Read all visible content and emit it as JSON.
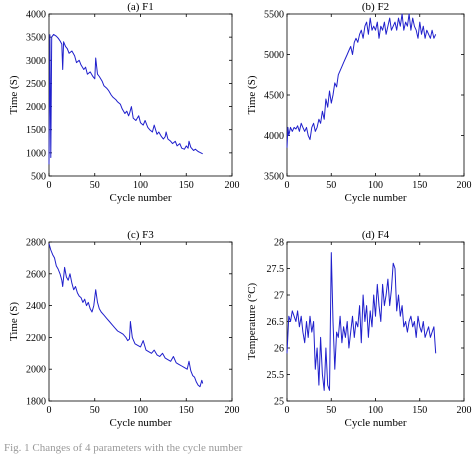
{
  "caption": "Fig. 1  Changes of 4 parameters with the cycle number",
  "chart_data": [
    {
      "type": "line",
      "title": "(a) F1",
      "xlabel": "Cycle number",
      "ylabel": "Time (S)",
      "xlim": [
        0,
        200
      ],
      "ylim": [
        500,
        4000
      ],
      "xticks": [
        0,
        50,
        100,
        150,
        200
      ],
      "yticks": [
        500,
        1000,
        1500,
        2000,
        2500,
        3000,
        3500,
        4000
      ],
      "grid": false,
      "color": "#1f1fcc",
      "series": [
        {
          "x": [
            0,
            1,
            2,
            3,
            5,
            8,
            10,
            12,
            14,
            15,
            16,
            18,
            20,
            22,
            25,
            28,
            30,
            33,
            35,
            38,
            40,
            42,
            45,
            48,
            50,
            51,
            53,
            55,
            58,
            60,
            63,
            65,
            68,
            70,
            73,
            75,
            78,
            80,
            83,
            85,
            87,
            88,
            90,
            92,
            95,
            98,
            100,
            103,
            105,
            108,
            110,
            113,
            115,
            118,
            120,
            123,
            125,
            127,
            128,
            130,
            133,
            135,
            138,
            140,
            143,
            145,
            148,
            150,
            152,
            153,
            155,
            158,
            160,
            163,
            165,
            168
          ],
          "y": [
            750,
            3550,
            900,
            3500,
            3560,
            3520,
            3480,
            3420,
            3350,
            2800,
            3400,
            3300,
            3250,
            3150,
            3200,
            3100,
            2950,
            3000,
            2900,
            2800,
            2850,
            2700,
            2750,
            2650,
            2600,
            3050,
            2700,
            2650,
            2550,
            2450,
            2400,
            2350,
            2250,
            2200,
            2150,
            2100,
            2050,
            1950,
            1850,
            1900,
            1800,
            1850,
            2000,
            1750,
            1700,
            1800,
            1650,
            1600,
            1700,
            1550,
            1500,
            1450,
            1600,
            1400,
            1450,
            1350,
            1300,
            1350,
            1450,
            1300,
            1250,
            1200,
            1250,
            1150,
            1200,
            1100,
            1080,
            1150,
            1100,
            1250,
            1120,
            1050,
            1080,
            1030,
            1010,
            980
          ]
        }
      ]
    },
    {
      "type": "line",
      "title": "(b) F2",
      "xlabel": "Cycle number",
      "ylabel": "Time (S)",
      "xlim": [
        0,
        200
      ],
      "ylim": [
        3500,
        5500
      ],
      "xticks": [
        0,
        50,
        100,
        150,
        200
      ],
      "yticks": [
        3500,
        4000,
        4500,
        5000,
        5500
      ],
      "grid": false,
      "color": "#1f1fcc",
      "series": [
        {
          "x": [
            0,
            1,
            2,
            4,
            6,
            8,
            10,
            12,
            14,
            16,
            18,
            20,
            22,
            24,
            26,
            28,
            30,
            32,
            34,
            36,
            38,
            40,
            42,
            44,
            46,
            48,
            50,
            52,
            54,
            56,
            58,
            60,
            62,
            64,
            66,
            68,
            70,
            72,
            74,
            76,
            78,
            80,
            82,
            84,
            86,
            88,
            90,
            92,
            94,
            96,
            98,
            100,
            102,
            104,
            106,
            108,
            110,
            112,
            114,
            116,
            118,
            120,
            122,
            124,
            126,
            128,
            130,
            132,
            134,
            136,
            138,
            140,
            142,
            144,
            146,
            148,
            150,
            152,
            154,
            156,
            158,
            160,
            162,
            164,
            166,
            168
          ],
          "y": [
            3850,
            4100,
            4000,
            4100,
            4050,
            4100,
            4080,
            4120,
            4050,
            4150,
            4100,
            4050,
            4100,
            4000,
            3950,
            4100,
            4150,
            4050,
            4100,
            4200,
            4150,
            4300,
            4200,
            4450,
            4350,
            4550,
            4400,
            4500,
            4650,
            4600,
            4750,
            4800,
            4850,
            4900,
            4950,
            5000,
            5050,
            5100,
            5000,
            5150,
            5200,
            5150,
            5250,
            5300,
            5200,
            5350,
            5400,
            5250,
            5450,
            5300,
            5350,
            5300,
            5400,
            5200,
            5350,
            5300,
            5400,
            5250,
            5350,
            5450,
            5300,
            5350,
            5400,
            5300,
            5450,
            5350,
            5500,
            5300,
            5400,
            5350,
            5500,
            5300,
            5450,
            5350,
            5300,
            5200,
            5400,
            5250,
            5350,
            5200,
            5300,
            5250,
            5200,
            5300,
            5200,
            5250
          ]
        }
      ]
    },
    {
      "type": "line",
      "title": "(c) F3",
      "xlabel": "Cycle number",
      "ylabel": "Time (S)",
      "xlim": [
        0,
        200
      ],
      "ylim": [
        1800,
        2800
      ],
      "xticks": [
        0,
        50,
        100,
        150,
        200
      ],
      "yticks": [
        1800,
        2000,
        2200,
        2400,
        2600,
        2800
      ],
      "grid": false,
      "color": "#1f1fcc",
      "series": [
        {
          "x": [
            0,
            2,
            4,
            6,
            8,
            10,
            12,
            14,
            15,
            17,
            19,
            21,
            23,
            25,
            27,
            29,
            31,
            33,
            35,
            37,
            39,
            41,
            43,
            45,
            47,
            49,
            51,
            53,
            55,
            57,
            60,
            63,
            66,
            69,
            72,
            75,
            78,
            81,
            84,
            86,
            88,
            89,
            91,
            94,
            97,
            100,
            103,
            106,
            109,
            112,
            115,
            118,
            121,
            124,
            127,
            130,
            133,
            136,
            139,
            142,
            145,
            148,
            151,
            153,
            155,
            157,
            159,
            161,
            163,
            165,
            167,
            168
          ],
          "y": [
            2790,
            2750,
            2720,
            2700,
            2650,
            2630,
            2600,
            2560,
            2520,
            2640,
            2580,
            2560,
            2600,
            2540,
            2500,
            2520,
            2480,
            2460,
            2450,
            2420,
            2440,
            2400,
            2420,
            2380,
            2360,
            2400,
            2500,
            2420,
            2380,
            2360,
            2340,
            2320,
            2300,
            2280,
            2260,
            2240,
            2230,
            2220,
            2200,
            2180,
            2190,
            2300,
            2200,
            2160,
            2150,
            2140,
            2180,
            2120,
            2110,
            2100,
            2120,
            2090,
            2080,
            2100,
            2070,
            2060,
            2050,
            2080,
            2040,
            2030,
            2020,
            2010,
            2000,
            2050,
            1990,
            1960,
            1950,
            1920,
            1900,
            1890,
            1930,
            1910
          ]
        }
      ]
    },
    {
      "type": "line",
      "title": "(d) F4",
      "xlabel": "Cycle number",
      "ylabel": "Temperature (°C)",
      "xlim": [
        0,
        200
      ],
      "ylim": [
        25,
        28
      ],
      "xticks": [
        0,
        50,
        100,
        150,
        200
      ],
      "yticks": [
        25,
        25.5,
        26,
        26.5,
        27,
        27.5,
        28
      ],
      "grid": false,
      "color": "#1f1fcc",
      "series": [
        {
          "x": [
            0,
            2,
            4,
            6,
            8,
            10,
            12,
            14,
            16,
            18,
            20,
            22,
            24,
            26,
            28,
            30,
            32,
            34,
            36,
            38,
            40,
            42,
            44,
            46,
            48,
            50,
            52,
            54,
            56,
            58,
            60,
            62,
            64,
            66,
            68,
            70,
            72,
            74,
            76,
            78,
            80,
            82,
            84,
            86,
            88,
            90,
            92,
            94,
            96,
            98,
            100,
            102,
            104,
            106,
            108,
            110,
            112,
            114,
            116,
            118,
            120,
            122,
            124,
            126,
            128,
            130,
            132,
            134,
            136,
            138,
            140,
            142,
            144,
            146,
            148,
            150,
            152,
            154,
            156,
            158,
            160,
            162,
            164,
            166,
            168
          ],
          "y": [
            25.9,
            26.6,
            26.5,
            26.7,
            26.6,
            26.5,
            26.7,
            26.4,
            26.6,
            26.3,
            26.1,
            26.5,
            26.2,
            26.6,
            26.3,
            26.5,
            25.6,
            26.0,
            25.3,
            26.2,
            25.5,
            25.2,
            26.0,
            25.3,
            25.2,
            27.8,
            26.5,
            25.6,
            26.3,
            26.2,
            26.6,
            26.1,
            26.4,
            26.2,
            26.5,
            26.0,
            26.3,
            26.6,
            26.2,
            26.5,
            26.4,
            26.8,
            26.1,
            27.0,
            26.5,
            26.8,
            26.2,
            26.7,
            26.4,
            27.0,
            26.6,
            27.2,
            26.8,
            26.5,
            27.2,
            26.8,
            27.0,
            27.3,
            26.8,
            27.1,
            27.6,
            27.5,
            26.7,
            27.0,
            26.6,
            26.8,
            26.4,
            26.5,
            26.3,
            26.5,
            26.6,
            26.4,
            26.5,
            26.2,
            26.6,
            26.4,
            26.3,
            26.5,
            26.2,
            26.3,
            26.4,
            26.2,
            26.3,
            26.4,
            25.9
          ]
        }
      ]
    }
  ]
}
